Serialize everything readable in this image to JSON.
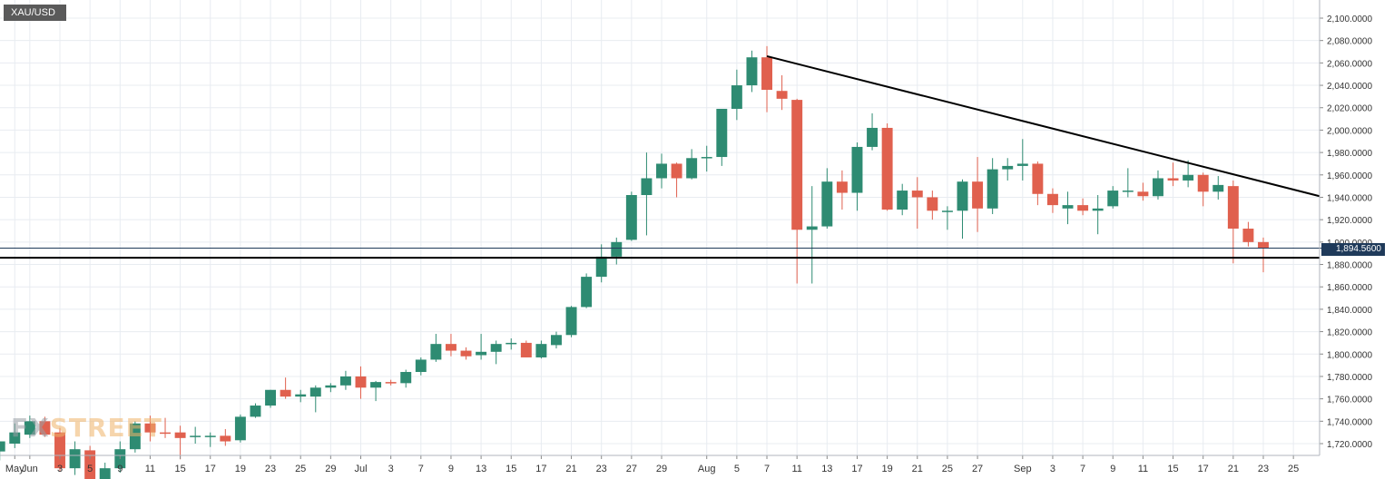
{
  "symbol": "XAU/USD",
  "watermark": {
    "part1": "FX",
    "part2": "STREET"
  },
  "current_price": "1,894.5600",
  "colors": {
    "up": "#2e8b72",
    "down": "#e0604e",
    "grid": "#e8ecf1",
    "axis_text": "#333333",
    "trendline": "#000000",
    "price_line": "#1f3a5a",
    "price_badge": "#1f3a5a"
  },
  "chart_data": {
    "type": "candlestick",
    "title": "XAU/USD",
    "y_ticks": [
      "1,720.0000",
      "1,740.0000",
      "1,760.0000",
      "1,780.0000",
      "1,800.0000",
      "1,820.0000",
      "1,840.0000",
      "1,860.0000",
      "1,880.0000",
      "1,900.0000",
      "1,920.0000",
      "1,940.0000",
      "1,960.0000",
      "1,980.0000",
      "2,000.0000",
      "2,020.0000",
      "2,040.0000",
      "2,060.0000",
      "2,080.0000",
      "2,100.0000"
    ],
    "y_tick_values": [
      1720,
      1740,
      1760,
      1780,
      1800,
      1820,
      1840,
      1860,
      1880,
      1900,
      1920,
      1940,
      1960,
      1980,
      2000,
      2020,
      2040,
      2060,
      2080,
      2100
    ],
    "ylim": [
      1712,
      2112
    ],
    "x_tick_labels": [
      {
        "label": "May",
        "date": "2020-05-29"
      },
      {
        "label": "Jun",
        "date": "2020-06-01"
      },
      {
        "label": "3",
        "date": "2020-06-03"
      },
      {
        "label": "5",
        "date": "2020-06-05"
      },
      {
        "label": "9",
        "date": "2020-06-09"
      },
      {
        "label": "11",
        "date": "2020-06-11"
      },
      {
        "label": "15",
        "date": "2020-06-15"
      },
      {
        "label": "17",
        "date": "2020-06-17"
      },
      {
        "label": "19",
        "date": "2020-06-19"
      },
      {
        "label": "23",
        "date": "2020-06-23"
      },
      {
        "label": "25",
        "date": "2020-06-25"
      },
      {
        "label": "29",
        "date": "2020-06-29"
      },
      {
        "label": "Jul",
        "date": "2020-07-01"
      },
      {
        "label": "3",
        "date": "2020-07-03"
      },
      {
        "label": "7",
        "date": "2020-07-07"
      },
      {
        "label": "9",
        "date": "2020-07-09"
      },
      {
        "label": "13",
        "date": "2020-07-13"
      },
      {
        "label": "15",
        "date": "2020-07-15"
      },
      {
        "label": "17",
        "date": "2020-07-17"
      },
      {
        "label": "21",
        "date": "2020-07-21"
      },
      {
        "label": "23",
        "date": "2020-07-23"
      },
      {
        "label": "27",
        "date": "2020-07-27"
      },
      {
        "label": "29",
        "date": "2020-07-29"
      },
      {
        "label": "Aug",
        "date": "2020-08-03"
      },
      {
        "label": "5",
        "date": "2020-08-05"
      },
      {
        "label": "7",
        "date": "2020-08-07"
      },
      {
        "label": "11",
        "date": "2020-08-11"
      },
      {
        "label": "13",
        "date": "2020-08-13"
      },
      {
        "label": "17",
        "date": "2020-08-17"
      },
      {
        "label": "19",
        "date": "2020-08-19"
      },
      {
        "label": "21",
        "date": "2020-08-21"
      },
      {
        "label": "25",
        "date": "2020-08-25"
      },
      {
        "label": "27",
        "date": "2020-08-27"
      },
      {
        "label": "Sep",
        "date": "2020-09-01"
      },
      {
        "label": "3",
        "date": "2020-09-03"
      },
      {
        "label": "7",
        "date": "2020-09-07"
      },
      {
        "label": "9",
        "date": "2020-09-09"
      },
      {
        "label": "11",
        "date": "2020-09-11"
      },
      {
        "label": "15",
        "date": "2020-09-15"
      },
      {
        "label": "17",
        "date": "2020-09-17"
      },
      {
        "label": "21",
        "date": "2020-09-21"
      },
      {
        "label": "23",
        "date": "2020-09-23"
      },
      {
        "label": "25",
        "date": "2020-09-25"
      }
    ],
    "candles": [
      {
        "date": "2020-05-28",
        "o": 1713,
        "h": 1722,
        "l": 1705,
        "c": 1722
      },
      {
        "date": "2020-05-29",
        "o": 1720,
        "h": 1738,
        "l": 1716,
        "c": 1730
      },
      {
        "date": "2020-06-01",
        "o": 1728,
        "h": 1745,
        "l": 1725,
        "c": 1740
      },
      {
        "date": "2020-06-02",
        "o": 1740,
        "h": 1744,
        "l": 1726,
        "c": 1728
      },
      {
        "date": "2020-06-03",
        "o": 1730,
        "h": 1734,
        "l": 1695,
        "c": 1698
      },
      {
        "date": "2020-06-04",
        "o": 1698,
        "h": 1722,
        "l": 1692,
        "c": 1715
      },
      {
        "date": "2020-06-05",
        "o": 1714,
        "h": 1718,
        "l": 1668,
        "c": 1685
      },
      {
        "date": "2020-06-08",
        "o": 1685,
        "h": 1703,
        "l": 1682,
        "c": 1698
      },
      {
        "date": "2020-06-09",
        "o": 1698,
        "h": 1722,
        "l": 1694,
        "c": 1715
      },
      {
        "date": "2020-06-10",
        "o": 1715,
        "h": 1740,
        "l": 1712,
        "c": 1738
      },
      {
        "date": "2020-06-11",
        "o": 1738,
        "h": 1745,
        "l": 1722,
        "c": 1730
      },
      {
        "date": "2020-06-12",
        "o": 1730,
        "h": 1743,
        "l": 1725,
        "c": 1729
      },
      {
        "date": "2020-06-15",
        "o": 1730,
        "h": 1736,
        "l": 1706,
        "c": 1725
      },
      {
        "date": "2020-06-16",
        "o": 1726,
        "h": 1735,
        "l": 1720,
        "c": 1727
      },
      {
        "date": "2020-06-17",
        "o": 1727,
        "h": 1730,
        "l": 1717,
        "c": 1727
      },
      {
        "date": "2020-06-18",
        "o": 1727,
        "h": 1733,
        "l": 1718,
        "c": 1722
      },
      {
        "date": "2020-06-19",
        "o": 1723,
        "h": 1746,
        "l": 1721,
        "c": 1744
      },
      {
        "date": "2020-06-22",
        "o": 1744,
        "h": 1756,
        "l": 1743,
        "c": 1754
      },
      {
        "date": "2020-06-23",
        "o": 1754,
        "h": 1768,
        "l": 1752,
        "c": 1768
      },
      {
        "date": "2020-06-24",
        "o": 1768,
        "h": 1779,
        "l": 1760,
        "c": 1762
      },
      {
        "date": "2020-06-25",
        "o": 1762,
        "h": 1768,
        "l": 1757,
        "c": 1764
      },
      {
        "date": "2020-06-26",
        "o": 1762,
        "h": 1772,
        "l": 1748,
        "c": 1770
      },
      {
        "date": "2020-06-29",
        "o": 1770,
        "h": 1774,
        "l": 1766,
        "c": 1772
      },
      {
        "date": "2020-06-30",
        "o": 1772,
        "h": 1785,
        "l": 1768,
        "c": 1780
      },
      {
        "date": "2020-07-01",
        "o": 1780,
        "h": 1789,
        "l": 1760,
        "c": 1770
      },
      {
        "date": "2020-07-02",
        "o": 1770,
        "h": 1776,
        "l": 1758,
        "c": 1775
      },
      {
        "date": "2020-07-03",
        "o": 1775,
        "h": 1777,
        "l": 1772,
        "c": 1774
      },
      {
        "date": "2020-07-06",
        "o": 1774,
        "h": 1786,
        "l": 1770,
        "c": 1784
      },
      {
        "date": "2020-07-07",
        "o": 1784,
        "h": 1797,
        "l": 1781,
        "c": 1795
      },
      {
        "date": "2020-07-08",
        "o": 1795,
        "h": 1818,
        "l": 1793,
        "c": 1809
      },
      {
        "date": "2020-07-09",
        "o": 1809,
        "h": 1818,
        "l": 1798,
        "c": 1803
      },
      {
        "date": "2020-07-10",
        "o": 1803,
        "h": 1806,
        "l": 1795,
        "c": 1798
      },
      {
        "date": "2020-07-13",
        "o": 1799,
        "h": 1818,
        "l": 1795,
        "c": 1802
      },
      {
        "date": "2020-07-14",
        "o": 1802,
        "h": 1812,
        "l": 1791,
        "c": 1809
      },
      {
        "date": "2020-07-15",
        "o": 1809,
        "h": 1814,
        "l": 1804,
        "c": 1810
      },
      {
        "date": "2020-07-16",
        "o": 1810,
        "h": 1812,
        "l": 1797,
        "c": 1797
      },
      {
        "date": "2020-07-17",
        "o": 1797,
        "h": 1812,
        "l": 1796,
        "c": 1809
      },
      {
        "date": "2020-07-20",
        "o": 1808,
        "h": 1820,
        "l": 1805,
        "c": 1817
      },
      {
        "date": "2020-07-21",
        "o": 1817,
        "h": 1843,
        "l": 1815,
        "c": 1842
      },
      {
        "date": "2020-07-22",
        "o": 1842,
        "h": 1872,
        "l": 1841,
        "c": 1869
      },
      {
        "date": "2020-07-23",
        "o": 1869,
        "h": 1898,
        "l": 1864,
        "c": 1887
      },
      {
        "date": "2020-07-24",
        "o": 1887,
        "h": 1904,
        "l": 1880,
        "c": 1900
      },
      {
        "date": "2020-07-27",
        "o": 1902,
        "h": 1945,
        "l": 1901,
        "c": 1942
      },
      {
        "date": "2020-07-28",
        "o": 1942,
        "h": 1980,
        "l": 1906,
        "c": 1957
      },
      {
        "date": "2020-07-29",
        "o": 1957,
        "h": 1979,
        "l": 1948,
        "c": 1970
      },
      {
        "date": "2020-07-30",
        "o": 1970,
        "h": 1971,
        "l": 1940,
        "c": 1957
      },
      {
        "date": "2020-07-31",
        "o": 1957,
        "h": 1983,
        "l": 1956,
        "c": 1975
      },
      {
        "date": "2020-08-03",
        "o": 1975,
        "h": 1986,
        "l": 1963,
        "c": 1976
      },
      {
        "date": "2020-08-04",
        "o": 1976,
        "h": 2018,
        "l": 1968,
        "c": 2019
      },
      {
        "date": "2020-08-05",
        "o": 2019,
        "h": 2054,
        "l": 2009,
        "c": 2040
      },
      {
        "date": "2020-08-06",
        "o": 2040,
        "h": 2071,
        "l": 2034,
        "c": 2065
      },
      {
        "date": "2020-08-07",
        "o": 2065,
        "h": 2075,
        "l": 2016,
        "c": 2036
      },
      {
        "date": "2020-08-10",
        "o": 2035,
        "h": 2049,
        "l": 2018,
        "c": 2028
      },
      {
        "date": "2020-08-11",
        "o": 2027,
        "h": 2028,
        "l": 1863,
        "c": 1911
      },
      {
        "date": "2020-08-12",
        "o": 1911,
        "h": 1950,
        "l": 1863,
        "c": 1914
      },
      {
        "date": "2020-08-13",
        "o": 1914,
        "h": 1966,
        "l": 1912,
        "c": 1954
      },
      {
        "date": "2020-08-14",
        "o": 1954,
        "h": 1964,
        "l": 1929,
        "c": 1944
      },
      {
        "date": "2020-08-17",
        "o": 1944,
        "h": 1989,
        "l": 1928,
        "c": 1985
      },
      {
        "date": "2020-08-18",
        "o": 1985,
        "h": 2015,
        "l": 1982,
        "c": 2002
      },
      {
        "date": "2020-08-19",
        "o": 2002,
        "h": 2006,
        "l": 1928,
        "c": 1929
      },
      {
        "date": "2020-08-20",
        "o": 1929,
        "h": 1952,
        "l": 1924,
        "c": 1946
      },
      {
        "date": "2020-08-21",
        "o": 1946,
        "h": 1958,
        "l": 1912,
        "c": 1940
      },
      {
        "date": "2020-08-24",
        "o": 1940,
        "h": 1946,
        "l": 1920,
        "c": 1928
      },
      {
        "date": "2020-08-25",
        "o": 1928,
        "h": 1932,
        "l": 1911,
        "c": 1928
      },
      {
        "date": "2020-08-26",
        "o": 1928,
        "h": 1956,
        "l": 1903,
        "c": 1954
      },
      {
        "date": "2020-08-27",
        "o": 1954,
        "h": 1976,
        "l": 1909,
        "c": 1930
      },
      {
        "date": "2020-08-28",
        "o": 1930,
        "h": 1975,
        "l": 1925,
        "c": 1965
      },
      {
        "date": "2020-08-31",
        "o": 1965,
        "h": 1975,
        "l": 1955,
        "c": 1968
      },
      {
        "date": "2020-09-01",
        "o": 1968,
        "h": 1992,
        "l": 1955,
        "c": 1970
      },
      {
        "date": "2020-09-02",
        "o": 1970,
        "h": 1972,
        "l": 1933,
        "c": 1943
      },
      {
        "date": "2020-09-03",
        "o": 1943,
        "h": 1948,
        "l": 1926,
        "c": 1933
      },
      {
        "date": "2020-09-04",
        "o": 1930,
        "h": 1945,
        "l": 1916,
        "c": 1933
      },
      {
        "date": "2020-09-07",
        "o": 1933,
        "h": 1939,
        "l": 1924,
        "c": 1928
      },
      {
        "date": "2020-09-08",
        "o": 1928,
        "h": 1942,
        "l": 1907,
        "c": 1930
      },
      {
        "date": "2020-09-09",
        "o": 1932,
        "h": 1950,
        "l": 1930,
        "c": 1946
      },
      {
        "date": "2020-09-10",
        "o": 1946,
        "h": 1966,
        "l": 1940,
        "c": 1946
      },
      {
        "date": "2020-09-11",
        "o": 1945,
        "h": 1953,
        "l": 1937,
        "c": 1941
      },
      {
        "date": "2020-09-14",
        "o": 1941,
        "h": 1964,
        "l": 1938,
        "c": 1957
      },
      {
        "date": "2020-09-15",
        "o": 1957,
        "h": 1971,
        "l": 1950,
        "c": 1955
      },
      {
        "date": "2020-09-16",
        "o": 1955,
        "h": 1973,
        "l": 1949,
        "c": 1960
      },
      {
        "date": "2020-09-17",
        "o": 1960,
        "h": 1962,
        "l": 1932,
        "c": 1945
      },
      {
        "date": "2020-09-18",
        "o": 1945,
        "h": 1959,
        "l": 1938,
        "c": 1951
      },
      {
        "date": "2020-09-21",
        "o": 1950,
        "h": 1955,
        "l": 1881,
        "c": 1912
      },
      {
        "date": "2020-09-22",
        "o": 1912,
        "h": 1918,
        "l": 1896,
        "c": 1900
      },
      {
        "date": "2020-09-23",
        "o": 1900,
        "h": 1904,
        "l": 1873,
        "c": 1895
      }
    ],
    "trendline": {
      "from": {
        "date": "2020-08-07",
        "value": 2066
      },
      "to": {
        "date": "2020-09-25",
        "value": 1941
      }
    },
    "support_line": 1886,
    "current_price_line": 1894.56,
    "grid": true
  }
}
